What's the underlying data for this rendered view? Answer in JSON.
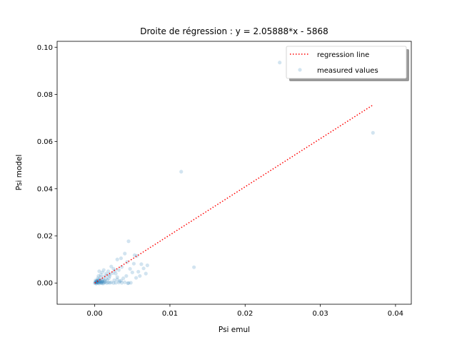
{
  "chart_data": {
    "type": "scatter",
    "title": "Droite de régression : y = 2.05888*x - 5868",
    "xlabel": "Psi emul",
    "ylabel": "Psi model",
    "xlim": [
      -0.005,
      0.0421
    ],
    "ylim": [
      -0.009,
      0.1025
    ],
    "xticks": [
      0.0,
      0.01,
      0.02,
      0.03,
      0.04
    ],
    "xtick_labels": [
      "0.00",
      "0.01",
      "0.02",
      "0.03",
      "0.04"
    ],
    "yticks": [
      0.0,
      0.02,
      0.04,
      0.06,
      0.08,
      0.1
    ],
    "ytick_labels": [
      "0.00",
      "0.02",
      "0.04",
      "0.06",
      "0.08",
      "0.10"
    ],
    "grid": false,
    "legend_position": "top-right",
    "colors": {
      "regression": "#ff0000",
      "points": "#1f77b4"
    },
    "series": [
      {
        "name": "regression line",
        "type": "line",
        "style": "dotted",
        "x": [
          0.0,
          0.037
        ],
        "y": [
          0.0,
          0.0755
        ]
      },
      {
        "name": "measured values",
        "type": "scatter",
        "points": [
          [
            0.0246,
            0.0935
          ],
          [
            0.037,
            0.0637
          ],
          [
            0.0115,
            0.0472
          ],
          [
            0.0132,
            0.0067
          ],
          [
            0.0045,
            0.0177
          ],
          [
            0.0053,
            0.0118
          ],
          [
            0.0056,
            0.0115
          ],
          [
            0.004,
            0.0125
          ],
          [
            0.003,
            0.01
          ],
          [
            0.0035,
            0.0105
          ],
          [
            0.0062,
            0.008
          ],
          [
            0.007,
            0.0075
          ],
          [
            0.0068,
            0.004
          ],
          [
            0.006,
            0.003
          ],
          [
            0.0047,
            0.006
          ],
          [
            0.005,
            0.0045
          ],
          [
            0.0042,
            0.003
          ],
          [
            0.0038,
            0.002
          ],
          [
            0.0045,
            0.0
          ],
          [
            0.0035,
            0.001
          ],
          [
            0.003,
            0.0025
          ],
          [
            0.0028,
            0.004
          ],
          [
            0.0025,
            0.006
          ],
          [
            0.0022,
            0.007
          ],
          [
            0.002,
            0.003
          ],
          [
            0.0018,
            0.005
          ],
          [
            0.0015,
            0.004
          ],
          [
            0.0012,
            0.0055
          ],
          [
            0.001,
            0.0045
          ],
          [
            0.0008,
            0.0035
          ],
          [
            0.0006,
            0.005
          ],
          [
            0.0005,
            0.003
          ],
          [
            0.0004,
            0.002
          ],
          [
            0.0003,
            0.001
          ],
          [
            0.0002,
            0.0005
          ],
          [
            0.0001,
            0.0002
          ],
          [
            0.0,
            0.0
          ],
          [
            0.0002,
            -0.0003
          ],
          [
            0.0004,
            0.0001
          ],
          [
            0.0006,
            0.0003
          ],
          [
            0.0008,
            0.0002
          ],
          [
            0.001,
            0.0004
          ],
          [
            0.0012,
            0.0001
          ],
          [
            0.0014,
            0.0003
          ],
          [
            0.0016,
            0.0
          ],
          [
            0.0018,
            0.0002
          ],
          [
            0.002,
            0.0001
          ],
          [
            0.0022,
            0.0003
          ],
          [
            0.0025,
            0.0
          ],
          [
            0.0028,
            0.0001
          ],
          [
            0.0032,
            0.0002
          ],
          [
            0.0036,
            0.0001
          ],
          [
            0.004,
            0.0003
          ],
          [
            0.0044,
            -0.0001
          ],
          [
            0.0048,
            0.0001
          ],
          [
            0.0003,
            0.0006
          ],
          [
            0.0005,
            0.0009
          ],
          [
            0.0007,
            0.0012
          ],
          [
            0.0009,
            0.0008
          ],
          [
            0.0011,
            0.0015
          ],
          [
            0.0013,
            0.0011
          ],
          [
            0.0015,
            0.0018
          ],
          [
            0.0017,
            0.0013
          ],
          [
            0.0019,
            0.0021
          ],
          [
            0.0008,
            0.0025
          ],
          [
            0.0012,
            0.0028
          ],
          [
            0.0016,
            0.0032
          ],
          [
            0.002,
            0.0038
          ],
          [
            0.0024,
            0.0042
          ],
          [
            0.0026,
            0.0012
          ],
          [
            0.003,
            0.0015
          ],
          [
            0.0033,
            0.0008
          ],
          [
            0.0006,
            -0.0002
          ],
          [
            0.0009,
            -0.0001
          ],
          [
            0.0011,
            -0.0002
          ],
          [
            0.0002,
            0.0001
          ],
          [
            0.0001,
            0.0003
          ],
          [
            0.0003,
            0.0002
          ],
          [
            0.0004,
            0.0004
          ],
          [
            0.0005,
            0.0001
          ],
          [
            0.0007,
            0.0006
          ],
          [
            0.0009,
            0.0003
          ],
          [
            0.001,
            0.001
          ],
          [
            0.0013,
            0.0006
          ],
          [
            0.0006,
            0.0015
          ],
          [
            0.0004,
            0.0012
          ],
          [
            0.0002,
            0.0008
          ],
          [
            0.0001,
            0.0011
          ],
          [
            0.0055,
            0.0022
          ],
          [
            0.0058,
            0.0048
          ],
          [
            0.0065,
            0.0062
          ],
          [
            0.0052,
            0.0082
          ],
          [
            0.0043,
            0.0089
          ],
          [
            0.0036,
            0.0068
          ],
          [
            0.0027,
            0.0052
          ],
          [
            0.0032,
            0.0055
          ]
        ]
      }
    ]
  }
}
